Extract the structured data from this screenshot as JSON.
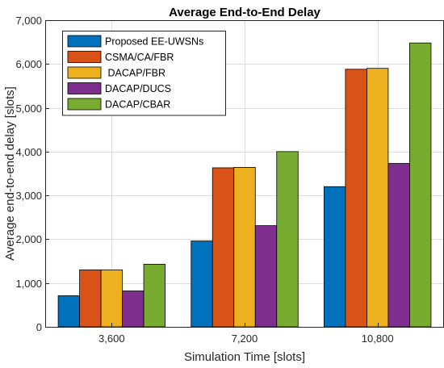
{
  "chart_data": {
    "type": "bar",
    "title": "Average End-to-End Delay",
    "xlabel": "Simulation Time [slots]",
    "ylabel": "Average end-to-end delay [slots]",
    "categories": [
      "3,600",
      "7,200",
      "10,800"
    ],
    "ylim": [
      0,
      7000
    ],
    "yticks": [
      0,
      1000,
      2000,
      3000,
      4000,
      5000,
      6000,
      7000
    ],
    "ytick_labels": [
      "0",
      "1,000",
      "2,000",
      "3,000",
      "4,000",
      "5,000",
      "6,000",
      "7,000"
    ],
    "grid": true,
    "legend_position": "top-left",
    "series": [
      {
        "name": "Proposed EE-UWSNs",
        "color": "#0072BD",
        "values": [
          710,
          1960,
          3200
        ]
      },
      {
        "name": "CSMA/CA/FBR",
        "color": "#D95319",
        "values": [
          1300,
          3630,
          5880
        ]
      },
      {
        "name": " DACAP/FBR",
        "color": "#EDB120",
        "values": [
          1300,
          3640,
          5900
        ]
      },
      {
        "name": "DACAP/DUCS",
        "color": "#7E2F8E",
        "values": [
          820,
          2310,
          3730
        ]
      },
      {
        "name": "DACAP/CBAR",
        "color": "#77AC30",
        "values": [
          1430,
          4000,
          6480
        ]
      }
    ]
  }
}
